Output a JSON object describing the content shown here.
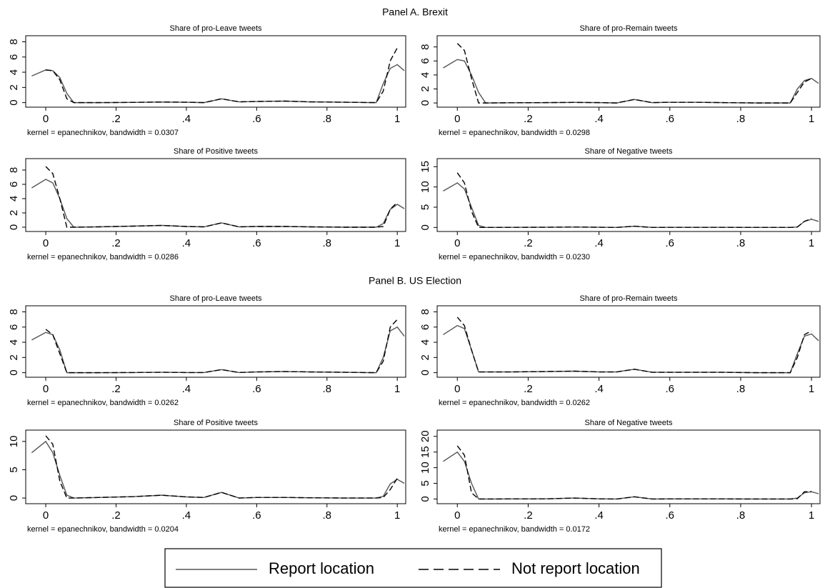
{
  "panels": [
    "Panel A. Brexit",
    "Panel B. US Election"
  ],
  "chart_data": [
    {
      "type": "line",
      "title": "Share of pro-Leave tweets",
      "note": "kernel = epanechnikov, bandwidth = 0.0307",
      "x": [
        -0.04,
        0,
        0.02,
        0.04,
        0.06,
        0.08,
        0.15,
        0.25,
        0.33,
        0.4,
        0.45,
        0.5,
        0.55,
        0.6,
        0.68,
        0.75,
        0.85,
        0.94,
        0.96,
        0.98,
        1,
        1.02
      ],
      "series": [
        {
          "name": "Report location",
          "color": "#555555",
          "dash": false,
          "values": [
            3.5,
            4.3,
            4.2,
            3.3,
            1.2,
            0,
            0,
            0.03,
            0.08,
            0.05,
            0,
            0.5,
            0.1,
            0.15,
            0.2,
            0.1,
            0.05,
            0,
            2.5,
            4.5,
            5,
            4.2
          ]
        },
        {
          "name": "Not report location",
          "color": "#000000",
          "dash": true,
          "values": [
            null,
            4.3,
            4.2,
            3,
            0.5,
            0,
            0,
            0.03,
            0.08,
            0.05,
            0,
            0.5,
            0.1,
            0.15,
            0.2,
            0.1,
            0.05,
            0,
            1.5,
            5.5,
            7.2,
            null
          ]
        }
      ],
      "xlim": [
        -0.057,
        1.024
      ],
      "ylim": [
        -0.6,
        8.8
      ],
      "xticks": [
        0,
        {
          "value": 0.2,
          "label": ".2"
        },
        {
          "value": 0.4,
          "label": ".4"
        },
        {
          "value": 0.6,
          "label": ".6"
        },
        {
          "value": 0.8,
          "label": ".8"
        },
        1
      ],
      "yticks": [
        0,
        2,
        4,
        6,
        8
      ]
    },
    {
      "type": "line",
      "title": "Share of pro-Remain tweets",
      "note": "kernel = epanechnikov, bandwidth = 0.0298",
      "x": [
        -0.04,
        0,
        0.02,
        0.04,
        0.06,
        0.08,
        0.15,
        0.25,
        0.33,
        0.4,
        0.45,
        0.5,
        0.55,
        0.6,
        0.68,
        0.75,
        0.85,
        0.94,
        0.96,
        0.98,
        1,
        1.02
      ],
      "series": [
        {
          "name": "Report location",
          "color": "#555555",
          "dash": false,
          "values": [
            5,
            6.2,
            6,
            4,
            1.5,
            0,
            0.03,
            0.05,
            0.08,
            0.05,
            0,
            0.5,
            0.05,
            0.1,
            0.1,
            0.05,
            0,
            0,
            2,
            3.2,
            3.5,
            2.8
          ]
        },
        {
          "name": "Not report location",
          "color": "#000000",
          "dash": true,
          "values": [
            null,
            8.5,
            7.5,
            3.5,
            0,
            0,
            0.03,
            0.05,
            0.08,
            0.05,
            0,
            0.5,
            0.05,
            0.1,
            0.1,
            0.05,
            0,
            0,
            1.5,
            3,
            3.5,
            null
          ]
        }
      ],
      "xlim": [
        -0.057,
        1.024
      ],
      "ylim": [
        -0.6,
        9.6
      ],
      "xticks": [
        0,
        {
          "value": 0.2,
          "label": ".2"
        },
        {
          "value": 0.4,
          "label": ".4"
        },
        {
          "value": 0.6,
          "label": ".6"
        },
        {
          "value": 0.8,
          "label": ".8"
        },
        1
      ],
      "yticks": [
        0,
        2,
        4,
        6,
        8
      ]
    },
    {
      "type": "line",
      "title": "Share of Positive tweets",
      "note": "kernel = epanechnikov, bandwidth = 0.0286",
      "x": [
        -0.04,
        0,
        0.02,
        0.04,
        0.06,
        0.08,
        0.15,
        0.25,
        0.33,
        0.4,
        0.45,
        0.5,
        0.55,
        0.6,
        0.68,
        0.75,
        0.85,
        0.94,
        0.96,
        0.98,
        1,
        1.02
      ],
      "series": [
        {
          "name": "Report location",
          "color": "#555555",
          "dash": false,
          "values": [
            5.5,
            6.7,
            6.2,
            4,
            1.2,
            0,
            0.05,
            0.15,
            0.25,
            0.1,
            0.05,
            0.6,
            0.05,
            0.1,
            0.1,
            0.05,
            0,
            0,
            0.5,
            2.5,
            3.2,
            2.6
          ]
        },
        {
          "name": "Not report location",
          "color": "#000000",
          "dash": true,
          "values": [
            null,
            8.5,
            7.5,
            4,
            0,
            0,
            0.05,
            0.15,
            0.25,
            0.1,
            0.05,
            0.6,
            0.05,
            0.1,
            0.1,
            0.05,
            0,
            0,
            0.1,
            2.5,
            3.5,
            null
          ]
        }
      ],
      "xlim": [
        -0.057,
        1.024
      ],
      "ylim": [
        -0.6,
        9.6
      ],
      "xticks": [
        0,
        {
          "value": 0.2,
          "label": ".2"
        },
        {
          "value": 0.4,
          "label": ".4"
        },
        {
          "value": 0.6,
          "label": ".6"
        },
        {
          "value": 0.8,
          "label": ".8"
        },
        1
      ],
      "yticks": [
        0,
        2,
        4,
        6,
        8
      ]
    },
    {
      "type": "line",
      "title": "Share of Negative tweets",
      "note": "kernel = epanechnikov, bandwidth = 0.0230",
      "x": [
        -0.04,
        0,
        0.02,
        0.04,
        0.06,
        0.08,
        0.15,
        0.25,
        0.33,
        0.4,
        0.45,
        0.5,
        0.55,
        0.6,
        0.68,
        0.75,
        0.85,
        0.94,
        0.96,
        0.98,
        1,
        1.02
      ],
      "series": [
        {
          "name": "Report location",
          "color": "#555555",
          "dash": false,
          "values": [
            9,
            11,
            9.5,
            5,
            0.5,
            0,
            0.02,
            0.05,
            0.1,
            0.05,
            0,
            0.3,
            0,
            0.02,
            0.02,
            0.02,
            0,
            0,
            0.1,
            1.5,
            2,
            1.5
          ]
        },
        {
          "name": "Not report location",
          "color": "#000000",
          "dash": true,
          "values": [
            null,
            13.5,
            11,
            4,
            0,
            0,
            0.02,
            0.05,
            0.1,
            0.05,
            0,
            0.3,
            0,
            0.02,
            0.02,
            0.02,
            0,
            0,
            0.1,
            1.5,
            2.2,
            null
          ]
        }
      ],
      "xlim": [
        -0.057,
        1.024
      ],
      "ylim": [
        -1,
        17
      ],
      "xticks": [
        0,
        {
          "value": 0.2,
          "label": ".2"
        },
        {
          "value": 0.4,
          "label": ".4"
        },
        {
          "value": 0.6,
          "label": ".6"
        },
        {
          "value": 0.8,
          "label": ".8"
        },
        1
      ],
      "yticks": [
        0,
        5,
        10,
        15
      ]
    },
    {
      "type": "line",
      "title": "Share of pro-Leave tweets",
      "note": "kernel = epanechnikov, bandwidth = 0.0262",
      "x": [
        -0.04,
        0,
        0.02,
        0.04,
        0.06,
        0.08,
        0.15,
        0.25,
        0.33,
        0.4,
        0.45,
        0.5,
        0.55,
        0.6,
        0.68,
        0.75,
        0.85,
        0.94,
        0.96,
        0.98,
        1,
        1.02
      ],
      "series": [
        {
          "name": "Report location",
          "color": "#555555",
          "dash": false,
          "values": [
            4.3,
            5.3,
            5,
            3,
            0,
            0,
            0,
            0.02,
            0.05,
            0.02,
            0.02,
            0.4,
            0.02,
            0.1,
            0.15,
            0.1,
            0.05,
            0,
            2,
            5.5,
            6,
            4.8
          ]
        },
        {
          "name": "Not report location",
          "color": "#000000",
          "dash": true,
          "values": [
            null,
            5.7,
            5,
            2.5,
            0,
            0,
            0,
            0.02,
            0.05,
            0.02,
            0.02,
            0.4,
            0.02,
            0.1,
            0.15,
            0.1,
            0.05,
            0,
            1.5,
            6,
            7,
            null
          ]
        }
      ],
      "xlim": [
        -0.057,
        1.024
      ],
      "ylim": [
        -0.6,
        8.8
      ],
      "xticks": [
        0,
        {
          "value": 0.2,
          "label": ".2"
        },
        {
          "value": 0.4,
          "label": ".4"
        },
        {
          "value": 0.6,
          "label": ".6"
        },
        {
          "value": 0.8,
          "label": ".8"
        },
        1
      ],
      "yticks": [
        0,
        2,
        4,
        6,
        8
      ]
    },
    {
      "type": "line",
      "title": "Share of pro-Remain tweets",
      "note": "kernel = epanechnikov, bandwidth = 0.0262",
      "x": [
        -0.04,
        0,
        0.02,
        0.04,
        0.06,
        0.08,
        0.15,
        0.25,
        0.33,
        0.4,
        0.45,
        0.5,
        0.55,
        0.6,
        0.68,
        0.75,
        0.85,
        0.94,
        0.96,
        0.98,
        1,
        1.02
      ],
      "series": [
        {
          "name": "Report location",
          "color": "#555555",
          "dash": false,
          "values": [
            5,
            6.2,
            5.8,
            3,
            0.1,
            0.1,
            0.1,
            0.15,
            0.2,
            0.1,
            0.1,
            0.45,
            0.05,
            0.05,
            0.05,
            0.05,
            0,
            0,
            2.5,
            4.8,
            5.1,
            4.2
          ]
        },
        {
          "name": "Not report location",
          "color": "#000000",
          "dash": true,
          "values": [
            null,
            7.3,
            6.2,
            3,
            0.1,
            0.1,
            0.1,
            0.15,
            0.2,
            0.1,
            0.1,
            0.45,
            0.05,
            0.05,
            0.05,
            0.05,
            0,
            0,
            2,
            5,
            5.5,
            null
          ]
        }
      ],
      "xlim": [
        -0.057,
        1.024
      ],
      "ylim": [
        -0.6,
        8.8
      ],
      "xticks": [
        0,
        {
          "value": 0.2,
          "label": ".2"
        },
        {
          "value": 0.4,
          "label": ".4"
        },
        {
          "value": 0.6,
          "label": ".6"
        },
        {
          "value": 0.8,
          "label": ".8"
        },
        1
      ],
      "yticks": [
        0,
        2,
        4,
        6,
        8
      ]
    },
    {
      "type": "line",
      "title": "Share of Positive tweets",
      "note": "kernel = epanechnikov, bandwidth = 0.0204",
      "x": [
        -0.04,
        0,
        0.02,
        0.04,
        0.06,
        0.08,
        0.15,
        0.25,
        0.33,
        0.4,
        0.45,
        0.5,
        0.55,
        0.6,
        0.68,
        0.75,
        0.85,
        0.94,
        0.96,
        0.98,
        1,
        1.02
      ],
      "series": [
        {
          "name": "Report location",
          "color": "#555555",
          "dash": false,
          "values": [
            8,
            10,
            8,
            4,
            0.5,
            0,
            0.1,
            0.25,
            0.5,
            0.2,
            0.1,
            1,
            0,
            0.1,
            0.1,
            0.05,
            0,
            0,
            0.3,
            2.5,
            3.3,
            2.6
          ]
        },
        {
          "name": "Not report location",
          "color": "#000000",
          "dash": true,
          "values": [
            null,
            11,
            9.5,
            3,
            0,
            0,
            0.1,
            0.25,
            0.5,
            0.2,
            0.1,
            1,
            0,
            0.1,
            0.1,
            0.05,
            0,
            0,
            0.1,
            1.5,
            3.5,
            null
          ]
        }
      ],
      "xlim": [
        -0.057,
        1.024
      ],
      "ylim": [
        -1,
        12
      ],
      "xticks": [
        0,
        {
          "value": 0.2,
          "label": ".2"
        },
        {
          "value": 0.4,
          "label": ".4"
        },
        {
          "value": 0.6,
          "label": ".6"
        },
        {
          "value": 0.8,
          "label": ".8"
        },
        1
      ],
      "yticks": [
        0,
        5,
        10
      ]
    },
    {
      "type": "line",
      "title": "Share of Negative tweets",
      "note": "kernel = epanechnikov, bandwidth = 0.0172",
      "x": [
        -0.04,
        0,
        0.02,
        0.04,
        0.06,
        0.08,
        0.15,
        0.25,
        0.33,
        0.4,
        0.45,
        0.5,
        0.55,
        0.6,
        0.68,
        0.75,
        0.85,
        0.94,
        0.96,
        0.98,
        1,
        1.02
      ],
      "series": [
        {
          "name": "Report location",
          "color": "#555555",
          "dash": false,
          "values": [
            12,
            15,
            12,
            5,
            0,
            0,
            0.02,
            0.05,
            0.3,
            0.05,
            0,
            0.7,
            0,
            0.02,
            0.02,
            0.02,
            0,
            0,
            0.3,
            2,
            2.3,
            1.7
          ]
        },
        {
          "name": "Not report location",
          "color": "#000000",
          "dash": true,
          "values": [
            null,
            17,
            14,
            2,
            0,
            0,
            0.02,
            0.05,
            0.3,
            0.05,
            0,
            0.7,
            0,
            0.02,
            0.02,
            0.02,
            0,
            0,
            0.1,
            2.3,
            2.4,
            null
          ]
        }
      ],
      "xlim": [
        -0.057,
        1.024
      ],
      "ylim": [
        -1.5,
        22
      ],
      "xticks": [
        0,
        {
          "value": 0.2,
          "label": ".2"
        },
        {
          "value": 0.4,
          "label": ".4"
        },
        {
          "value": 0.6,
          "label": ".6"
        },
        {
          "value": 0.8,
          "label": ".8"
        },
        1
      ],
      "yticks": [
        0,
        5,
        10,
        15,
        20
      ]
    }
  ]
}
